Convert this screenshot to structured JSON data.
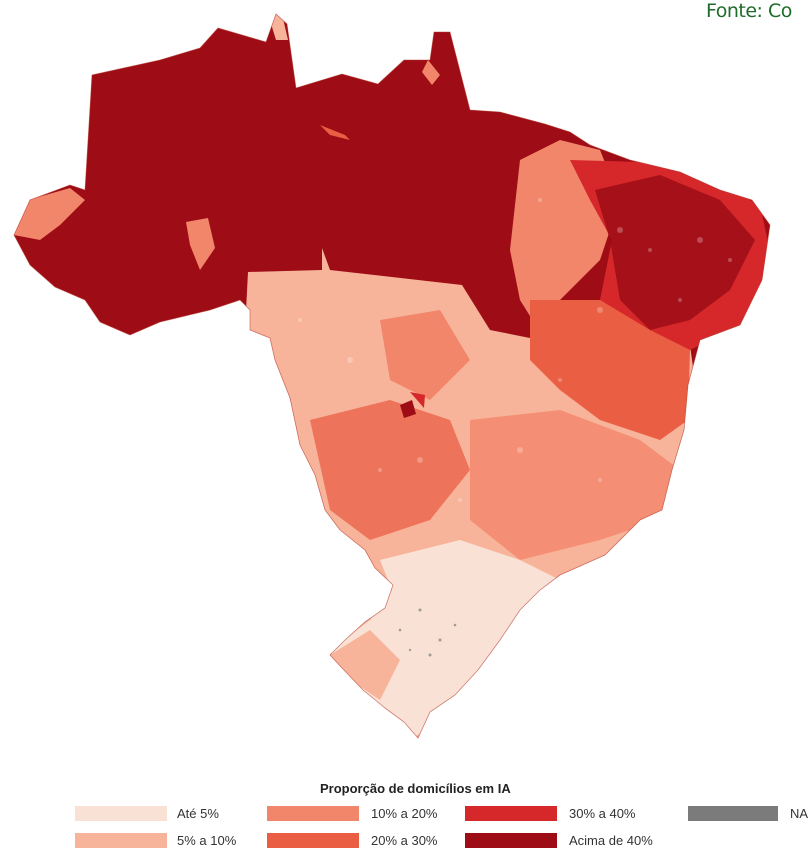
{
  "source_text": "Fonte: Co",
  "legend": {
    "title": "Proporção de domicílios em IA",
    "items": [
      {
        "label": "Até 5%",
        "color": "#f9e2d5"
      },
      {
        "label": "5% a 10%",
        "color": "#f7b49a"
      },
      {
        "label": "10% a 20%",
        "color": "#f2866b"
      },
      {
        "label": "20% a 30%",
        "color": "#ea5f44"
      },
      {
        "label": "30% a 40%",
        "color": "#d6282a"
      },
      {
        "label": "Acima de 40%",
        "color": "#9e0c16"
      },
      {
        "label": "NA",
        "color": "#7b7b7b"
      }
    ]
  }
}
